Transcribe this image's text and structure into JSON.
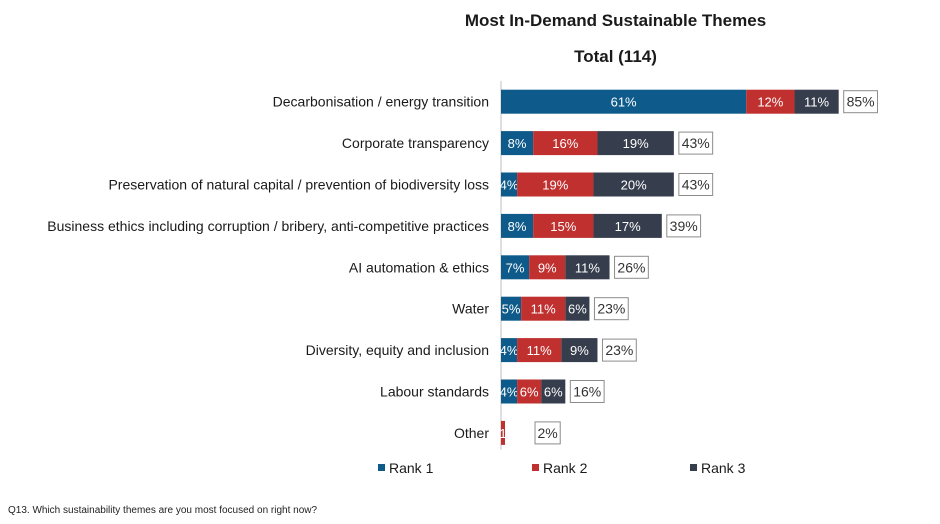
{
  "chart_data": {
    "type": "bar",
    "orientation": "horizontal",
    "stacked": true,
    "title": "Most In-Demand Sustainable Themes",
    "subtitle": "Total (114)",
    "categories": [
      "Decarbonisation / energy transition",
      "Corporate transparency",
      "Preservation of natural capital / prevention of biodiversity loss",
      "Business ethics including corruption / bribery, anti-competitive practices",
      "AI automation & ethics",
      "Water",
      "Diversity, equity and inclusion",
      "Labour standards",
      "Other"
    ],
    "series": [
      {
        "name": "Rank 1",
        "color": "#0e5a8a",
        "values": [
          61,
          8,
          4,
          8,
          7,
          5,
          4,
          4,
          0
        ],
        "labels": [
          "61%",
          "8%",
          "4%",
          "8%",
          "7%",
          "5%",
          "4%",
          "4%",
          ""
        ]
      },
      {
        "name": "Rank 2",
        "color": "#c0302f",
        "values": [
          12,
          16,
          19,
          15,
          9,
          11,
          11,
          6,
          1
        ],
        "labels": [
          "12%",
          "16%",
          "19%",
          "15%",
          "9%",
          "11%",
          "11%",
          "6%",
          "1"
        ]
      },
      {
        "name": "Rank 3",
        "color": "#363d4c",
        "values": [
          11,
          19,
          20,
          17,
          11,
          6,
          9,
          6,
          0
        ],
        "labels": [
          "11%",
          "19%",
          "20%",
          "17%",
          "11%",
          "6%",
          "9%",
          "6%",
          ""
        ]
      }
    ],
    "totals": [
      "85%",
      "43%",
      "43%",
      "39%",
      "26%",
      "23%",
      "23%",
      "16%",
      "2%"
    ],
    "xlim": [
      0,
      100
    ],
    "grid": false,
    "legend_position": "bottom"
  },
  "footnote": "Q13. Which sustainability themes are you most focused on right now?"
}
